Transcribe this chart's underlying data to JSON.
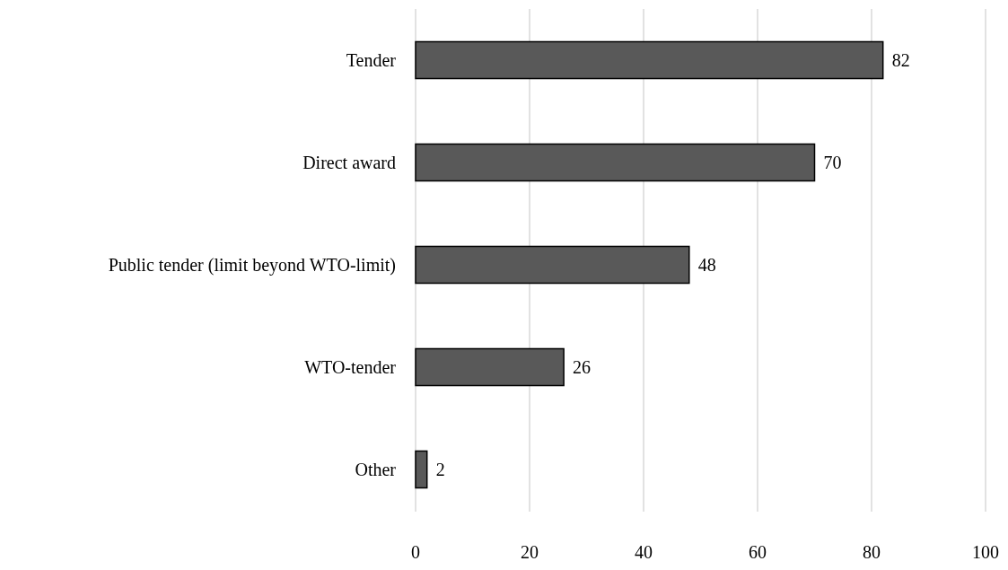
{
  "chart_data": {
    "type": "bar",
    "orientation": "horizontal",
    "categories": [
      "Tender",
      "Direct award",
      "Public tender (limit beyond WTO-limit)",
      "WTO-tender",
      "Other"
    ],
    "values": [
      82,
      70,
      48,
      26,
      2
    ],
    "color": "#595959",
    "xlim": [
      0,
      100
    ],
    "xticks": [
      0,
      20,
      40,
      60,
      80,
      100
    ],
    "grid": "x",
    "data_labels": true
  }
}
